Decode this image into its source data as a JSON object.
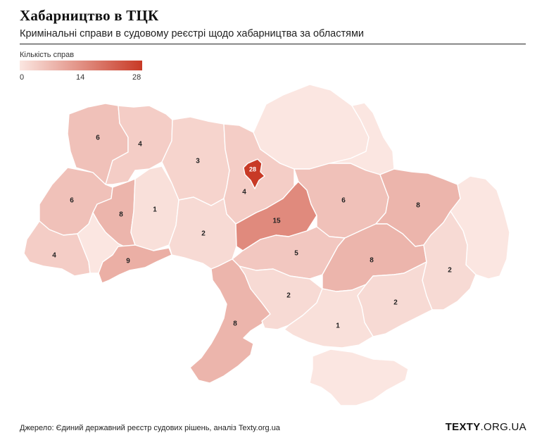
{
  "title": "Хабарництво в ТЦК",
  "subtitle": "Кримінальні справи в судовому реєстрі щодо хабарництва за областями",
  "legend": {
    "label": "Кількість справ",
    "ticks": [
      "0",
      "14",
      "28"
    ],
    "min": 0,
    "max": 28,
    "color_low": "#fbe6e1",
    "color_high": "#c83a26"
  },
  "regions": [
    {
      "id": "volyn",
      "value": 6,
      "label": "6"
    },
    {
      "id": "rivne",
      "value": 4,
      "label": "4"
    },
    {
      "id": "zhytomyr",
      "value": 3,
      "label": "3"
    },
    {
      "id": "kyiv-oblast",
      "value": 4,
      "label": "4"
    },
    {
      "id": "kyiv-city",
      "value": 28,
      "label": "28"
    },
    {
      "id": "chernihiv",
      "value": 0,
      "label": ""
    },
    {
      "id": "sumy",
      "value": 0,
      "label": ""
    },
    {
      "id": "lviv",
      "value": 6,
      "label": "6"
    },
    {
      "id": "ternopil",
      "value": 8,
      "label": "8"
    },
    {
      "id": "khmelnytskyi",
      "value": 1,
      "label": "1"
    },
    {
      "id": "zakarpattia",
      "value": 4,
      "label": "4"
    },
    {
      "id": "ivano-frankivsk",
      "value": 0,
      "label": ""
    },
    {
      "id": "chernivtsi",
      "value": 9,
      "label": "9"
    },
    {
      "id": "vinnytsia",
      "value": 2,
      "label": "2"
    },
    {
      "id": "cherkasy",
      "value": 15,
      "label": "15"
    },
    {
      "id": "poltava",
      "value": 6,
      "label": "6"
    },
    {
      "id": "kharkiv",
      "value": 8,
      "label": "8"
    },
    {
      "id": "luhansk",
      "value": 0,
      "label": ""
    },
    {
      "id": "kirovohrad",
      "value": 5,
      "label": "5"
    },
    {
      "id": "dnipropetrovsk",
      "value": 8,
      "label": "8"
    },
    {
      "id": "donetsk",
      "value": 2,
      "label": "2"
    },
    {
      "id": "odesa",
      "value": 8,
      "label": "8"
    },
    {
      "id": "mykolaiv",
      "value": 2,
      "label": "2"
    },
    {
      "id": "zaporizhzhia",
      "value": 2,
      "label": "2"
    },
    {
      "id": "kherson",
      "value": 1,
      "label": "1"
    },
    {
      "id": "crimea",
      "value": 0,
      "label": ""
    }
  ],
  "source": "Джерело: Єдиний державний реєстр судових рішень, аналіз Texty.org.ua",
  "brand": {
    "bold": "TEXTY",
    "light": ".ORG.UA"
  }
}
